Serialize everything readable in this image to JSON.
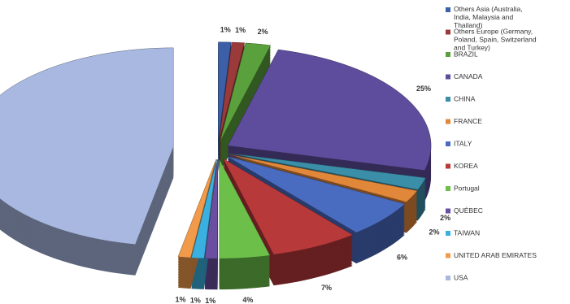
{
  "chart_data": {
    "type": "pie",
    "categories": [
      "Others Asia (Australia, India, Malaysia and Thailand)",
      "Others Europe (Germany, Poland, Spain, Switzerland and Turkey)",
      "BRAZIL",
      "CANADA",
      "CHINA",
      "FRANCE",
      "ITALY",
      "KOREA",
      "Portugal",
      "QUÉBEC",
      "TAIWAN",
      "UNITED ARAB EMIRATES",
      "USA"
    ],
    "values": [
      1,
      1,
      2,
      25,
      2,
      2,
      6,
      7,
      4,
      1,
      1,
      1,
      47
    ],
    "value_labels": [
      "1%",
      "1%",
      "2%",
      "25%",
      "2%",
      "2%",
      "6%",
      "7%",
      "4%",
      "1%",
      "1%",
      "1%",
      null
    ],
    "colors": [
      "#3c5fa8",
      "#9b3a3a",
      "#5aa03c",
      "#5e4c9c",
      "#3b8ea8",
      "#e0873a",
      "#4a6cc0",
      "#b8393a",
      "#6cc04a",
      "#6a4fa0",
      "#3ab0e0",
      "#f09a4a",
      "#a8b8e0"
    ],
    "legend": "right"
  }
}
